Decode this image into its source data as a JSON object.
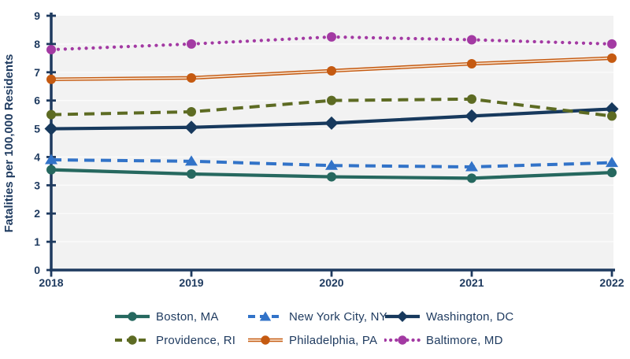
{
  "chart_data": {
    "type": "line",
    "title": "",
    "xlabel": "",
    "ylabel": "Fatalities per 100,000 Residents",
    "x": [
      "2018",
      "2019",
      "2020",
      "2021",
      "2022"
    ],
    "ylim": [
      0,
      9
    ],
    "yticks": [
      "0",
      "1",
      "2",
      "3",
      "4",
      "5",
      "6",
      "7",
      "8",
      "9"
    ],
    "grid": "horizontal-white-gridlines",
    "legend_position": "bottom-two-rows",
    "series": [
      {
        "name": "Boston, MA",
        "color": "#26685f",
        "line_style": "solid",
        "marker": "circle",
        "values": [
          3.55,
          3.4,
          3.3,
          3.25,
          3.45
        ]
      },
      {
        "name": "New York City, NY",
        "color": "#3273c8",
        "line_style": "dashed",
        "marker": "triangle",
        "values": [
          3.9,
          3.85,
          3.7,
          3.65,
          3.8
        ]
      },
      {
        "name": "Washington, DC",
        "color": "#17395d",
        "line_style": "solid",
        "marker": "diamond",
        "values": [
          5.0,
          5.05,
          5.2,
          5.45,
          5.7
        ]
      },
      {
        "name": "Providence, RI",
        "color": "#5d6b23",
        "line_style": "dashed",
        "marker": "circle",
        "values": [
          5.5,
          5.6,
          6.0,
          6.05,
          5.45
        ]
      },
      {
        "name": "Philadelphia, PA",
        "color": "#c55a11",
        "line_style": "double",
        "marker": "circle",
        "values": [
          6.75,
          6.8,
          7.05,
          7.3,
          7.5
        ]
      },
      {
        "name": "Baltimore, MD",
        "color": "#a33aa3",
        "line_style": "dotted",
        "marker": "circle",
        "values": [
          7.8,
          8.0,
          8.25,
          8.15,
          8.0
        ]
      }
    ],
    "colors": {
      "text": "#1e3a5f",
      "axis": "#1e3a5f",
      "plot_bg": "#f2f2f2",
      "gridline": "#fbfbfb",
      "page_bg": "#ffffff",
      "double_line_inner": "#f7e2cd"
    }
  }
}
